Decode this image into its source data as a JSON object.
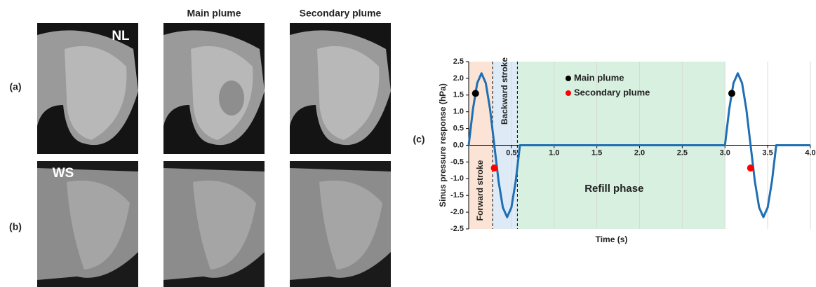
{
  "figure": {
    "column_headers": [
      "Main plume",
      "Secondary plume"
    ],
    "row_labels": [
      "(a)",
      "(b)"
    ],
    "panel_labels": [
      "NL",
      "WS"
    ],
    "chart_label": "(c)"
  },
  "chart_data": {
    "type": "line",
    "x_label": "Time (s)",
    "y_label": "Sinus pressure response (hPa)",
    "x": [
      0,
      0.05,
      0.1,
      0.15,
      0.2,
      0.25,
      0.3,
      0.35,
      0.4,
      0.45,
      0.5,
      0.55,
      0.6,
      3.0,
      3.05,
      3.1,
      3.15,
      3.2,
      3.25,
      3.3,
      3.35,
      3.4,
      3.45,
      3.5,
      3.55,
      3.6,
      4.0
    ],
    "values": [
      0,
      1.08,
      1.86,
      2.15,
      1.86,
      1.08,
      0,
      -1.08,
      -1.86,
      -2.15,
      -1.86,
      -1.08,
      0,
      0,
      1.08,
      1.86,
      2.15,
      1.86,
      1.08,
      0,
      -1.08,
      -1.86,
      -2.15,
      -1.86,
      -1.08,
      0,
      0
    ],
    "color": "#1f6fb4",
    "series": [
      {
        "name": "Main plume",
        "color": "#000000",
        "x": [
          0.08,
          3.08
        ],
        "values": [
          1.55,
          1.55
        ]
      },
      {
        "name": "Secondary plume",
        "color": "#ff0000",
        "x": [
          0.3,
          3.3
        ],
        "values": [
          -0.68,
          -0.68
        ]
      }
    ],
    "regions": [
      {
        "label": "Forward stroke",
        "from": 0,
        "to": 0.28,
        "color": "#fbe4d5"
      },
      {
        "label": "Backward stroke",
        "from": 0.28,
        "to": 0.57,
        "color": "#deebf7"
      },
      {
        "label": "Refill phase",
        "from": 0.57,
        "to": 3.0,
        "color": "#d8f0e0"
      }
    ],
    "dividers": [
      0.28,
      0.57
    ],
    "xlim": [
      0,
      4
    ],
    "ylim": [
      -2.5,
      2.5
    ],
    "xticks": [
      {
        "value": 0,
        "label": "0.0"
      },
      0.5,
      {
        "value": 1,
        "label": "1.0"
      },
      1.5,
      {
        "value": 2,
        "label": "2.0"
      },
      2.5,
      {
        "value": 3,
        "label": "3.0"
      },
      3.5,
      {
        "value": 4,
        "label": "4.0"
      }
    ],
    "yticks": [
      {
        "value": 2.5,
        "label": "2.5"
      },
      {
        "value": 2,
        "label": "2.0"
      },
      1.5,
      {
        "value": 1,
        "label": "1.0"
      },
      0.5,
      {
        "value": 0,
        "label": "0.0"
      },
      -0.5,
      {
        "value": -1,
        "label": "-1.0"
      },
      -1.5,
      {
        "value": -2,
        "label": "-2.0"
      },
      -2.5
    ],
    "grid": true,
    "legend": "upper center"
  }
}
